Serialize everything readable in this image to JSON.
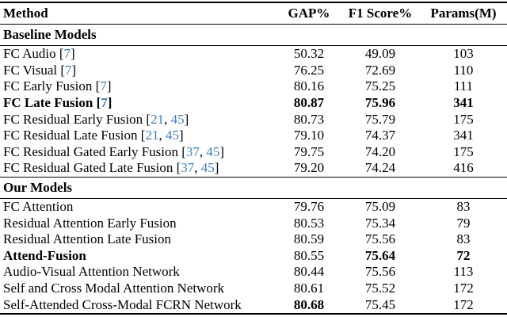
{
  "page": {
    "background": "#ffffff",
    "text_color": "#000000",
    "citation_color": "#3E7EC1"
  },
  "table": {
    "columns": [
      {
        "label": "Method"
      },
      {
        "label": "GAP%"
      },
      {
        "label": "F1 Score%"
      },
      {
        "label": "Params(M)"
      }
    ],
    "sections": [
      {
        "title": "Baseline Models",
        "rows": [
          {
            "method": "FC Audio",
            "refs": [
              "7"
            ],
            "gap": "50.32",
            "f1": "49.09",
            "params": "103",
            "bold": []
          },
          {
            "method": "FC Visual",
            "refs": [
              "7"
            ],
            "gap": "76.25",
            "f1": "72.69",
            "params": "110",
            "bold": []
          },
          {
            "method": "FC Early Fusion",
            "refs": [
              "7"
            ],
            "gap": "80.16",
            "f1": "75.25",
            "params": "111",
            "bold": []
          },
          {
            "method": "FC Late Fusion",
            "refs": [
              "7"
            ],
            "gap": "80.87",
            "f1": "75.96",
            "params": "341",
            "bold": [
              "method",
              "gap",
              "f1",
              "params"
            ]
          },
          {
            "method": "FC Residual Early Fusion",
            "refs": [
              "21",
              "45"
            ],
            "gap": "80.73",
            "f1": "75.79",
            "params": "175",
            "bold": []
          },
          {
            "method": "FC Residual Late Fusion",
            "refs": [
              "21",
              "45"
            ],
            "gap": "79.10",
            "f1": "74.37",
            "params": "341",
            "bold": []
          },
          {
            "method": "FC Residual Gated Early Fusion",
            "refs": [
              "37",
              "45"
            ],
            "gap": "79.75",
            "f1": "74.20",
            "params": "175",
            "bold": []
          },
          {
            "method": "FC Residual Gated Late Fusion",
            "refs": [
              "37",
              "45"
            ],
            "gap": "79.20",
            "f1": "74.24",
            "params": "416",
            "bold": []
          }
        ]
      },
      {
        "title": "Our Models",
        "rows": [
          {
            "method": "FC Attention",
            "refs": [],
            "gap": "79.76",
            "f1": "75.09",
            "params": "83",
            "bold": []
          },
          {
            "method": "Residual Attention Early Fusion",
            "refs": [],
            "gap": "80.53",
            "f1": "75.34",
            "params": "79",
            "bold": []
          },
          {
            "method": "Residual Attention Late Fusion",
            "refs": [],
            "gap": "80.59",
            "f1": "75.56",
            "params": "83",
            "bold": []
          },
          {
            "method": "Attend-Fusion",
            "refs": [],
            "gap": "80.55",
            "f1": "75.64",
            "params": "72",
            "bold": [
              "method",
              "f1",
              "params"
            ]
          },
          {
            "method": "Audio-Visual Attention Network",
            "refs": [],
            "gap": "80.44",
            "f1": "75.56",
            "params": "113",
            "bold": []
          },
          {
            "method": "Self and Cross Modal Attention Network",
            "refs": [],
            "gap": "80.61",
            "f1": "75.52",
            "params": "172",
            "bold": []
          },
          {
            "method": "Self-Attended Cross-Modal FCRN Network",
            "refs": [],
            "gap": "80.68",
            "f1": "75.45",
            "params": "172",
            "bold": [
              "gap"
            ]
          }
        ]
      }
    ],
    "citation_open_bracket": "[",
    "citation_close_bracket": "]",
    "citation_separator": ", "
  }
}
